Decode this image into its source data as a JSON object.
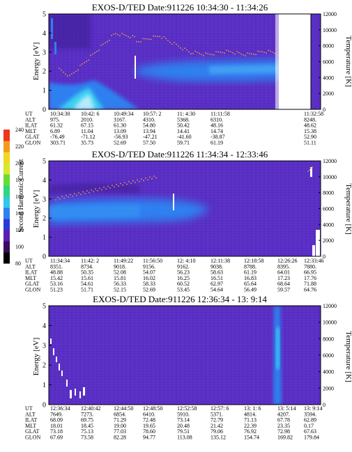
{
  "chart_data": [
    {
      "type": "heatmap",
      "title": "EXOS-D/TED   Date:911226   10:34:30 - 11:34:26",
      "ylabel": "Energy [eV]",
      "ylabel_right": "Temperature [K]",
      "ylim": [
        0,
        5
      ],
      "yticks": [
        "0",
        "1",
        "2",
        "3",
        "4",
        "5"
      ],
      "y2lim": [
        0,
        12000
      ],
      "y2ticks": [
        "0",
        "2000",
        "4000",
        "6000",
        "8000",
        "10000",
        "12000"
      ],
      "row_labels": [
        "UT",
        "ALT",
        "ILAT",
        "MLT",
        "GLAT",
        "GLON"
      ],
      "columns": [
        [
          "10:34:30",
          "975.",
          "61.32",
          "6.89",
          "-76.49",
          "303.71"
        ],
        [
          "10:42: 6",
          "2010.",
          "67.15",
          "11.04",
          "-71.12",
          "35.73"
        ],
        [
          "10:49:34",
          "3167.",
          "61.30",
          "13.09",
          "-56.93",
          "52.69"
        ],
        [
          "10:57: 2",
          "4310.",
          "54.80",
          "13.94",
          "-47.21",
          "57.50"
        ],
        [
          "11: 4:30",
          "5368.",
          "50.42",
          "14.41",
          "-41.60",
          "59.71"
        ],
        [
          "11:11:58",
          "6310.",
          "48.16",
          "14.74",
          "-38.87",
          "61.19"
        ]
      ],
      "end_column": [
        "11:32:58",
        "8248.",
        "48.62",
        "15.38",
        "52.90",
        "51.11"
      ]
    },
    {
      "type": "heatmap",
      "title": "EXOS-D/TED   Date:911226   11:34:34 - 12:33:46",
      "ylabel": "Energy [eV]",
      "ylabel_right": "Temperature [K]",
      "ylim": [
        0,
        5
      ],
      "yticks": [
        "0",
        "1",
        "2",
        "3",
        "4",
        "5"
      ],
      "y2lim": [
        0,
        12000
      ],
      "y2ticks": [
        "0",
        "2000",
        "4000",
        "6000",
        "8000",
        "10000",
        "12000"
      ],
      "row_labels": [
        "UT",
        "ALT",
        "ILAT",
        "MLT",
        "GLAT",
        "GLON"
      ],
      "columns": [
        [
          "11:34:34",
          "8351.",
          "48.88",
          "15.42",
          "53.16",
          "51.23"
        ],
        [
          "11:42: 2",
          "8734.",
          "50.35",
          "15.61",
          "54.61",
          "51.71"
        ],
        [
          "11:49:22",
          "9018.",
          "52.08",
          "15.81",
          "56.33",
          "52.15"
        ],
        [
          "11:56:50",
          "9156.",
          "54.07",
          "16.02",
          "58.33",
          "52.69"
        ],
        [
          "12: 4:10",
          "9162.",
          "56.23",
          "16.25",
          "60.52",
          "53.45"
        ],
        [
          "12:11:38",
          "9038.",
          "58.63",
          "16.51",
          "62.97",
          "54.64"
        ],
        [
          "12:18:58",
          "8788.",
          "61.19",
          "16.83",
          "65.64",
          "56.49"
        ],
        [
          "12:26:26",
          "8395.",
          "64.01",
          "17.23",
          "68.64",
          "59.57"
        ],
        [
          "12:33:46",
          "7880.",
          "66.95",
          "17.76",
          "71.88",
          "64.76"
        ]
      ]
    },
    {
      "type": "heatmap",
      "title": "EXOS-D/TED   Date:911226   12:36:34 - 13: 9:14",
      "ylabel": "Energy [eV]",
      "ylabel_right": "Temperature [K]",
      "ylim": [
        0,
        5
      ],
      "yticks": [
        "0",
        "1",
        "2",
        "3",
        "4",
        "5"
      ],
      "y2lim": [
        0,
        12000
      ],
      "y2ticks": [
        "0",
        "2000",
        "4000",
        "6000",
        "8000",
        "10000",
        "12000"
      ],
      "row_labels": [
        "UT",
        "ALT",
        "ILAT",
        "MLT",
        "GLAT",
        "GLON"
      ],
      "columns": [
        [
          "12:36:34",
          "7649.",
          "68.09",
          "18.01",
          "73.18",
          "67.69"
        ],
        [
          "12:40:42",
          "7273.",
          "69.75",
          "18.45",
          "75.13",
          "73.58"
        ],
        [
          "12:44:50",
          "6854.",
          "71.29",
          "19.00",
          "77.03",
          "82.28"
        ],
        [
          "12:48:50",
          "6410.",
          "72.48",
          "19.65",
          "78.60",
          "94.77"
        ],
        [
          "12:52:58",
          "5910.",
          "73.14",
          "20.48",
          "79.51",
          "113.08"
        ],
        [
          "12:57: 6",
          "5371.",
          "72.79",
          "21.42",
          "79.06",
          "135.12"
        ],
        [
          "13: 1: 6",
          "4814.",
          "71.13",
          "22.39",
          "76.92",
          "154.74"
        ],
        [
          "13: 5:14",
          "4207.",
          "67.78",
          "23.35",
          "72.98",
          "169.82"
        ],
        [
          "13: 9:14",
          "3594.",
          "62.89",
          "0.17",
          "67.63",
          "179.84"
        ]
      ]
    }
  ],
  "colorbar": {
    "label": "Second Harmonic Current",
    "ticks": [
      "80",
      "100",
      "120",
      "140",
      "160",
      "180",
      "200",
      "220",
      "240"
    ],
    "range": [
      80,
      240
    ],
    "colors": [
      "#000000",
      "#3a0b5e",
      "#5a1fb0",
      "#2a3ad8",
      "#2f80f0",
      "#30c8e8",
      "#2ed87a",
      "#66dd33",
      "#d8e82a",
      "#f0d820",
      "#f39a22",
      "#ee3520"
    ]
  },
  "colors": {
    "background": "#5a2fc4",
    "bright": "#2f80f0",
    "cyan": "#38d0f0",
    "temperature_dots": "#e8a040",
    "blank": "#ffffff"
  }
}
